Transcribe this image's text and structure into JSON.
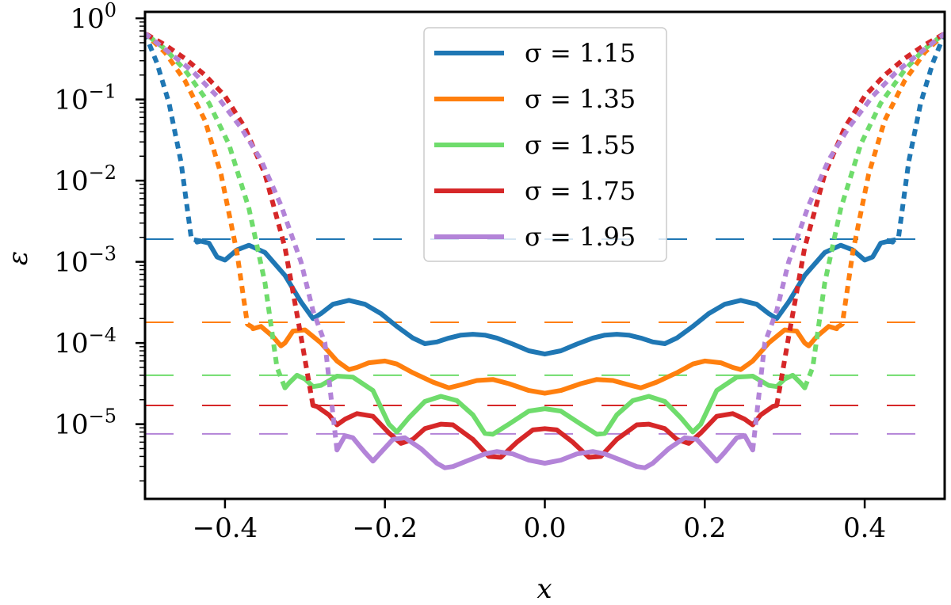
{
  "chart_data": {
    "type": "line",
    "title": "",
    "xlabel": "x",
    "ylabel": "ε",
    "xlim": [
      -0.5,
      0.5
    ],
    "ylim": [
      1.2e-06,
      1.2
    ],
    "yscale": "log",
    "grid": false,
    "legend_position": "top-center",
    "x_ticks": [
      -0.4,
      -0.2,
      0.0,
      0.2,
      0.4
    ],
    "x_tick_labels": [
      "−0.4",
      "−0.2",
      "0.0",
      "0.2",
      "0.4"
    ],
    "y_tick_labels": [
      {
        "value": 1,
        "base": "10",
        "exp": "0"
      },
      {
        "value": 0.1,
        "base": "10",
        "exp": "−1"
      },
      {
        "value": 0.01,
        "base": "10",
        "exp": "−2"
      },
      {
        "value": 0.001,
        "base": "10",
        "exp": "−3"
      },
      {
        "value": 0.0001,
        "base": "10",
        "exp": "−4"
      },
      {
        "value": 1e-05,
        "base": "10",
        "exp": "−5"
      }
    ],
    "series": [
      {
        "name": "σ = 1.15",
        "color": "#1f77b4",
        "threshold": 0.0019,
        "solid": [
          [
            0.0,
            7.3e-05
          ],
          [
            0.02,
            8e-05
          ],
          [
            0.04,
            9.7e-05
          ],
          [
            0.06,
            0.000115
          ],
          [
            0.075,
            0.000125
          ],
          [
            0.09,
            0.000128
          ],
          [
            0.105,
            0.000125
          ],
          [
            0.12,
            0.000115
          ],
          [
            0.135,
            0.000103
          ],
          [
            0.15,
            9.8e-05
          ],
          [
            0.165,
            0.000115
          ],
          [
            0.185,
            0.00016
          ],
          [
            0.205,
            0.00023
          ],
          [
            0.225,
            0.0003
          ],
          [
            0.245,
            0.000335
          ],
          [
            0.265,
            0.0003
          ],
          [
            0.28,
            0.00023
          ],
          [
            0.29,
            0.0002
          ],
          [
            0.305,
            0.00032
          ],
          [
            0.325,
            0.00068
          ],
          [
            0.35,
            0.0013
          ],
          [
            0.37,
            0.0016
          ],
          [
            0.385,
            0.0014
          ],
          [
            0.4,
            0.00105
          ],
          [
            0.41,
            0.00115
          ],
          [
            0.42,
            0.0017
          ],
          [
            0.43,
            0.0018
          ],
          [
            0.435,
            0.00175
          ]
        ],
        "dashed": [
          [
            0.43,
            0.0018
          ],
          [
            0.442,
            0.0019
          ],
          [
            0.455,
            0.017
          ],
          [
            0.47,
            0.09
          ],
          [
            0.485,
            0.28
          ],
          [
            0.5,
            0.65
          ]
        ]
      },
      {
        "name": "σ = 1.35",
        "color": "#ff7f0e",
        "threshold": 0.00018,
        "solid": [
          [
            0.0,
            2.4e-05
          ],
          [
            0.02,
            2.6e-05
          ],
          [
            0.045,
            3.15e-05
          ],
          [
            0.065,
            3.55e-05
          ],
          [
            0.085,
            3.45e-05
          ],
          [
            0.105,
            3.05e-05
          ],
          [
            0.12,
            2.8e-05
          ],
          [
            0.14,
            3.3e-05
          ],
          [
            0.165,
            4.3e-05
          ],
          [
            0.185,
            5.5e-05
          ],
          [
            0.2,
            6e-05
          ],
          [
            0.22,
            5.7e-05
          ],
          [
            0.235,
            5e-05
          ],
          [
            0.245,
            4.7e-05
          ],
          [
            0.26,
            6e-05
          ],
          [
            0.28,
            0.0001
          ],
          [
            0.3,
            0.000145
          ],
          [
            0.315,
            0.00014
          ],
          [
            0.325,
            0.0001
          ],
          [
            0.33,
            9.2e-05
          ],
          [
            0.34,
            0.00012
          ],
          [
            0.355,
            0.00016
          ],
          [
            0.365,
            0.00015
          ]
        ],
        "dashed": [
          [
            0.365,
            0.000155
          ],
          [
            0.372,
            0.00017
          ],
          [
            0.385,
            0.0013
          ],
          [
            0.405,
            0.012
          ],
          [
            0.425,
            0.055
          ],
          [
            0.45,
            0.17
          ],
          [
            0.475,
            0.38
          ],
          [
            0.5,
            0.65
          ]
        ]
      },
      {
        "name": "σ = 1.55",
        "color": "#6fdc6c",
        "threshold": 4e-05,
        "solid": [
          [
            0.0,
            1.55e-05
          ],
          [
            0.02,
            1.45e-05
          ],
          [
            0.045,
            1e-05
          ],
          [
            0.065,
            7.5e-06
          ],
          [
            0.075,
            7.7e-06
          ],
          [
            0.09,
            1.3e-05
          ],
          [
            0.11,
            1.95e-05
          ],
          [
            0.13,
            2.2e-05
          ],
          [
            0.15,
            1.9e-05
          ],
          [
            0.17,
            1.2e-05
          ],
          [
            0.185,
            8e-06
          ],
          [
            0.195,
            1e-05
          ],
          [
            0.215,
            2.6e-05
          ],
          [
            0.24,
            3.8e-05
          ],
          [
            0.26,
            3.9e-05
          ],
          [
            0.28,
            3e-05
          ],
          [
            0.29,
            2.9e-05
          ],
          [
            0.3,
            3.6e-05
          ],
          [
            0.31,
            4e-05
          ],
          [
            0.32,
            3.2e-05
          ],
          [
            0.325,
            2.8e-05
          ]
        ],
        "dashed": [
          [
            0.325,
            2.8e-05
          ],
          [
            0.335,
            5e-05
          ],
          [
            0.35,
            0.00055
          ],
          [
            0.37,
            0.0045
          ],
          [
            0.395,
            0.028
          ],
          [
            0.42,
            0.09
          ],
          [
            0.45,
            0.23
          ],
          [
            0.475,
            0.42
          ],
          [
            0.5,
            0.65
          ]
        ]
      },
      {
        "name": "σ = 1.75",
        "color": "#d62728",
        "threshold": 1.7e-05,
        "solid": [
          [
            0.0,
            8.8e-06
          ],
          [
            0.015,
            8.5e-06
          ],
          [
            0.035,
            6e-06
          ],
          [
            0.055,
            3.9e-06
          ],
          [
            0.07,
            4e-06
          ],
          [
            0.09,
            6.5e-06
          ],
          [
            0.115,
            9.8e-06
          ],
          [
            0.13,
            1e-05
          ],
          [
            0.15,
            8.8e-06
          ],
          [
            0.165,
            6.5e-06
          ],
          [
            0.18,
            5.8e-06
          ],
          [
            0.195,
            7.8e-06
          ],
          [
            0.215,
            1.25e-05
          ],
          [
            0.235,
            1.35e-05
          ],
          [
            0.25,
            1.15e-05
          ],
          [
            0.26,
            9.8e-06
          ],
          [
            0.27,
            1.3e-05
          ],
          [
            0.285,
            1.65e-05
          ],
          [
            0.29,
            1.7e-05
          ]
        ],
        "dashed": [
          [
            0.29,
            1.7e-05
          ],
          [
            0.305,
            0.00012
          ],
          [
            0.325,
            0.0015
          ],
          [
            0.35,
            0.012
          ],
          [
            0.375,
            0.045
          ],
          [
            0.4,
            0.11
          ],
          [
            0.425,
            0.2
          ],
          [
            0.45,
            0.32
          ],
          [
            0.475,
            0.47
          ],
          [
            0.5,
            0.65
          ]
        ]
      },
      {
        "name": "σ = 1.95",
        "color": "#b384d8",
        "threshold": 7.6e-06,
        "solid": [
          [
            0.0,
            3.3e-06
          ],
          [
            0.02,
            3.6e-06
          ],
          [
            0.04,
            4.3e-06
          ],
          [
            0.06,
            4.6e-06
          ],
          [
            0.075,
            4.3e-06
          ],
          [
            0.095,
            3.6e-06
          ],
          [
            0.115,
            3e-06
          ],
          [
            0.125,
            2.9e-06
          ],
          [
            0.135,
            3.3e-06
          ],
          [
            0.155,
            5e-06
          ],
          [
            0.175,
            6.8e-06
          ],
          [
            0.19,
            6.5e-06
          ],
          [
            0.205,
            4.5e-06
          ],
          [
            0.215,
            3.5e-06
          ],
          [
            0.225,
            4.5e-06
          ],
          [
            0.24,
            6.8e-06
          ],
          [
            0.25,
            7.2e-06
          ],
          [
            0.26,
            4.8e-06
          ]
        ],
        "dashed": [
          [
            0.26,
            4.8e-06
          ],
          [
            0.275,
            0.0001
          ],
          [
            0.29,
            0.00025
          ],
          [
            0.305,
            0.001
          ],
          [
            0.33,
            0.005
          ],
          [
            0.355,
            0.018
          ],
          [
            0.38,
            0.045
          ],
          [
            0.41,
            0.11
          ],
          [
            0.44,
            0.22
          ],
          [
            0.47,
            0.38
          ],
          [
            0.5,
            0.65
          ]
        ]
      }
    ]
  }
}
